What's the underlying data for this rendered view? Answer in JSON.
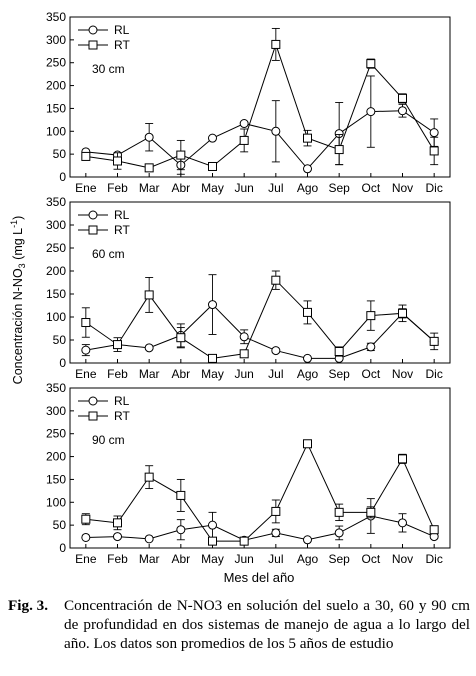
{
  "figure": {
    "ylabel": "Concentración N-NO",
    "ylabel_sub": "3",
    "ylabel_unit_open": " (mg L",
    "ylabel_unit_sup": "-1",
    "ylabel_unit_close": ")",
    "xlabel": "Mes del año",
    "caption_label": "Fig. 3.",
    "caption_text": "Concentración de N-NO3 en solución del suelo a 30, 60 y 90 cm de profundidad en dos sistemas de manejo de agua a lo largo del año. Los datos son promedios de los 5 años de estudio"
  },
  "chart_data": [
    {
      "type": "line",
      "panel_label": "30 cm",
      "categories": [
        "Ene",
        "Feb",
        "Mar",
        "Abr",
        "May",
        "Jun",
        "Jul",
        "Ago",
        "Sep",
        "Oct",
        "Nov",
        "Dic"
      ],
      "ylim": [
        0,
        350
      ],
      "yticks": [
        0,
        50,
        100,
        150,
        200,
        250,
        300,
        350
      ],
      "legend_position": "top-left",
      "series": [
        {
          "name": "RL",
          "marker": "circle",
          "values": [
            55,
            48,
            87,
            26,
            85,
            117,
            100,
            18,
            95,
            143,
            145,
            97
          ],
          "error": [
            0,
            0,
            30,
            20,
            0,
            0,
            67,
            0,
            68,
            78,
            14,
            30
          ]
        },
        {
          "name": "RT",
          "marker": "square",
          "values": [
            45,
            35,
            20,
            48,
            23,
            80,
            290,
            85,
            60,
            248,
            172,
            57
          ],
          "error": [
            0,
            18,
            0,
            32,
            0,
            25,
            35,
            17,
            33,
            10,
            10,
            30
          ]
        }
      ]
    },
    {
      "type": "line",
      "panel_label": "60 cm",
      "categories": [
        "Ene",
        "Feb",
        "Mar",
        "Abr",
        "May",
        "Jun",
        "Jul",
        "Ago",
        "Sep",
        "Oct",
        "Nov",
        "Dic"
      ],
      "ylim": [
        0,
        350
      ],
      "yticks": [
        0,
        50,
        100,
        150,
        200,
        250,
        300,
        350
      ],
      "legend_position": "top-left",
      "series": [
        {
          "name": "RL",
          "marker": "circle",
          "values": [
            28,
            40,
            33,
            60,
            127,
            57,
            27,
            10,
            10,
            35,
            108,
            47
          ],
          "error": [
            12,
            0,
            0,
            25,
            65,
            15,
            0,
            0,
            0,
            8,
            18,
            0
          ]
        },
        {
          "name": "RT",
          "marker": "square",
          "values": [
            88,
            40,
            148,
            55,
            10,
            20,
            180,
            110,
            25,
            103,
            108,
            47
          ],
          "error": [
            32,
            15,
            38,
            22,
            0,
            0,
            20,
            25,
            10,
            32,
            10,
            18
          ]
        }
      ]
    },
    {
      "type": "line",
      "panel_label": "90 cm",
      "categories": [
        "Ene",
        "Feb",
        "Mar",
        "Abr",
        "May",
        "Jun",
        "Jul",
        "Ago",
        "Sep",
        "Oct",
        "Nov",
        "Dic"
      ],
      "ylim": [
        0,
        350
      ],
      "yticks": [
        0,
        50,
        100,
        150,
        200,
        250,
        300,
        350
      ],
      "legend_position": "top-left",
      "series": [
        {
          "name": "RL",
          "marker": "circle",
          "values": [
            23,
            25,
            20,
            40,
            50,
            17,
            33,
            18,
            33,
            70,
            55,
            25
          ],
          "error": [
            0,
            0,
            0,
            22,
            28,
            0,
            8,
            0,
            15,
            38,
            20,
            0
          ]
        },
        {
          "name": "RT",
          "marker": "square",
          "values": [
            63,
            55,
            155,
            115,
            15,
            15,
            80,
            228,
            78,
            78,
            195,
            40
          ],
          "error": [
            12,
            15,
            25,
            35,
            0,
            0,
            25,
            5,
            18,
            12,
            10,
            0
          ]
        }
      ]
    }
  ]
}
